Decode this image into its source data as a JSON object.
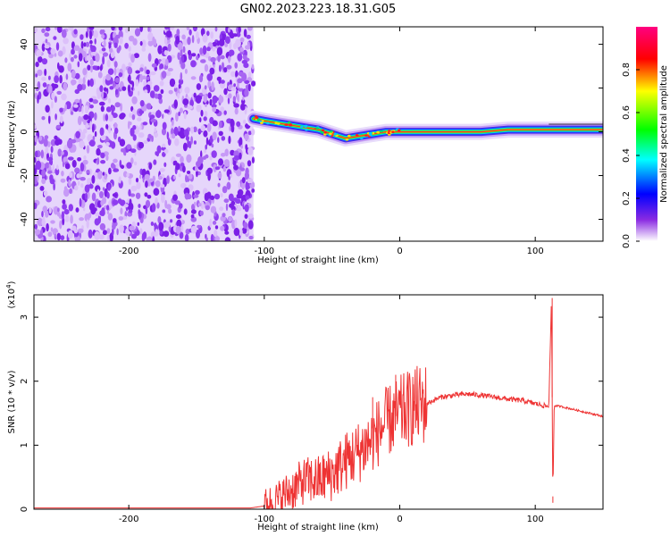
{
  "title": "GN02.2023.223.18.31.G05",
  "chart_data": [
    {
      "type": "heatmap",
      "xlabel": "Height of straight line (km)",
      "ylabel": "Frequency (Hz)",
      "xlim": [
        -270,
        150
      ],
      "ylim": [
        -50,
        48
      ],
      "xticks": [
        -200,
        -100,
        0,
        100
      ],
      "yticks": [
        -40,
        -20,
        0,
        20,
        40
      ],
      "noise_region_x": [
        -270,
        -108
      ],
      "colorbar": {
        "label": "Normalized spectral amplitude",
        "range": [
          0,
          1
        ],
        "ticks": [
          "0.0",
          "0.2",
          "0.4",
          "0.6",
          "0.8"
        ],
        "colors": [
          "#ffffff",
          "#8a2be2",
          "#0000ff",
          "#00ffff",
          "#00ff00",
          "#ffff00",
          "#ff0000",
          "#ff0080"
        ]
      },
      "ridge": {
        "x": [
          -108,
          -100,
          -90,
          -80,
          -70,
          -60,
          -50,
          -40,
          -30,
          -20,
          -10,
          0,
          20,
          40,
          60,
          80,
          100,
          110,
          120,
          150
        ],
        "frequency": [
          6,
          5,
          4,
          3,
          2,
          1,
          -1,
          -3,
          -2,
          -1,
          0,
          0,
          0,
          0,
          0,
          1,
          1,
          1,
          1,
          1
        ]
      }
    },
    {
      "type": "line",
      "xlabel": "Height of straight line (km)",
      "ylabel": "SNR (10 * v/v)",
      "multiplier": "(x10",
      "multiplier_exp": "4",
      "multiplier_close": ")",
      "xlim": [
        -270,
        150
      ],
      "ylim": [
        0,
        3.35
      ],
      "xticks": [
        -200,
        -100,
        0,
        100
      ],
      "yticks": [
        0,
        1,
        2,
        3
      ],
      "color": "#ee3333",
      "series": [
        {
          "x": [
            -270,
            -200,
            -110,
            -100,
            -90,
            -80,
            -70,
            -60,
            -50,
            -40,
            -30,
            -20,
            -10,
            0,
            10,
            20,
            30,
            40,
            50,
            60,
            70,
            80,
            90,
            100,
            110,
            112,
            113,
            114,
            120,
            130,
            140,
            150
          ],
          "values": [
            0.02,
            0.02,
            0.02,
            0.05,
            0.15,
            0.3,
            0.45,
            0.45,
            0.55,
            0.75,
            0.9,
            1.1,
            1.35,
            1.5,
            1.6,
            1.65,
            1.75,
            1.78,
            1.8,
            1.78,
            1.75,
            1.72,
            1.7,
            1.65,
            1.6,
            3.3,
            0.2,
            1.62,
            1.6,
            1.55,
            1.5,
            1.45
          ]
        }
      ]
    }
  ]
}
